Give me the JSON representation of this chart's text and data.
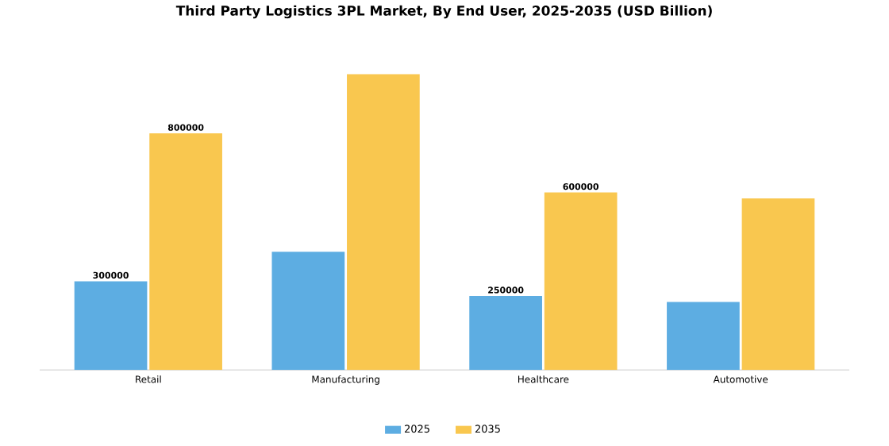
{
  "chart_data": {
    "type": "bar",
    "title": "Third Party Logistics 3PL Market, By End User, 2025-2035 (USD Billion)",
    "categories": [
      "Retail",
      "Manufacturing",
      "Healthcare",
      "Automotive"
    ],
    "series": [
      {
        "name": "2025",
        "color": "#5dade2",
        "values": [
          300000,
          400000,
          250000,
          230000
        ],
        "value_labels": [
          "300000",
          null,
          "250000",
          null
        ]
      },
      {
        "name": "2035",
        "color": "#f9c74f",
        "values": [
          800000,
          1000000,
          600000,
          580000
        ],
        "value_labels": [
          "800000",
          null,
          "600000",
          null
        ]
      }
    ],
    "legend": "bottom"
  }
}
